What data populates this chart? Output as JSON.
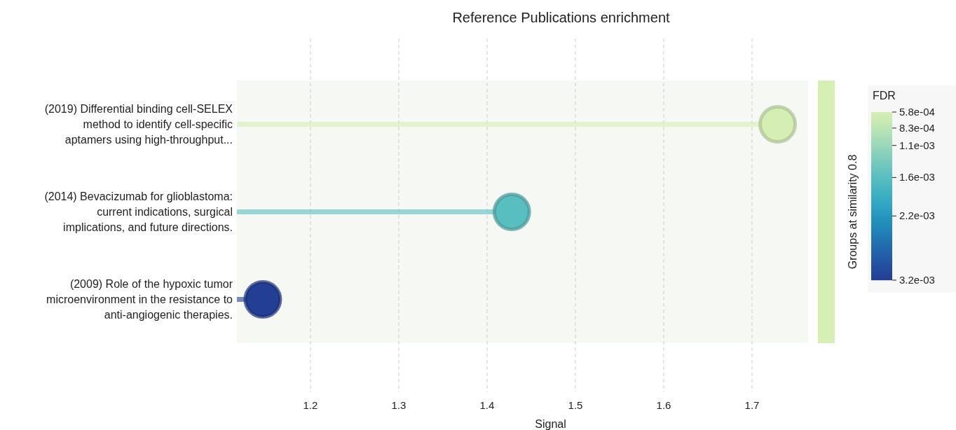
{
  "chart_data": {
    "type": "lollipop",
    "title": "Reference Publications enrichment",
    "xlabel": "Signal",
    "orientation": "horizontal",
    "categories": [
      "(2019) Differential binding cell-SELEX\nmethod to identify cell-specific\naptamers using high-throughput...",
      "(2014) Bevacizumab for glioblastoma:\ncurrent indications, surgical\nimplications, and future directions.",
      "(2009) Role of the hypoxic tumor\nmicroenvironment in the resistance to\nanti-angiogenic therapies."
    ],
    "values": [
      1.729,
      1.428,
      1.146
    ],
    "cvalues": [
      0.00058,
      0.0016,
      0.0032
    ],
    "clabel": "FDR",
    "clim": [
      0.00058,
      0.0032
    ],
    "cticks": [
      {
        "value": 0.00058,
        "label": "5.8e-04"
      },
      {
        "value": 0.00083,
        "label": "8.3e-04"
      },
      {
        "value": 0.0011,
        "label": "1.1e-03"
      },
      {
        "value": 0.0016,
        "label": "1.6e-03"
      },
      {
        "value": 0.0022,
        "label": "2.2e-03"
      },
      {
        "value": 0.0032,
        "label": "3.2e-03"
      }
    ],
    "xlim": [
      1.1167,
      1.7635
    ],
    "xticks": [
      1.2,
      1.3,
      1.4,
      1.5,
      1.6,
      1.7
    ],
    "grid": "x",
    "marker": "circle",
    "annotations": [
      "Groups at similarity 0.8"
    ]
  }
}
